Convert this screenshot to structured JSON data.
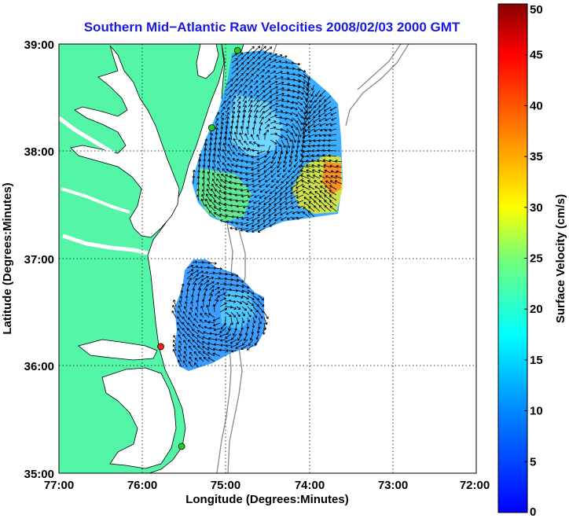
{
  "title": "Southern Mid−Atlantic Raw Velocities 2008/02/03 2000 GMT",
  "chart_data": {
    "type": "map",
    "xlabel": "Longitude (Degrees:Minutes)",
    "ylabel": "Latitude (Degrees:Minutes)",
    "x_ticks": [
      "77:00",
      "76:00",
      "75:00",
      "74:00",
      "73:00",
      "72:00"
    ],
    "y_ticks": [
      "39:00",
      "38:00",
      "37:00",
      "36:00",
      "35:00"
    ],
    "xlim": [
      -77,
      -72
    ],
    "ylim": [
      35,
      39
    ],
    "grid": "dotted",
    "colorbar": {
      "label": "Surface Velocity (cm/s)",
      "range": [
        0,
        50
      ],
      "ticks": [
        "50",
        "45",
        "40",
        "35",
        "30",
        "25",
        "20",
        "15",
        "10",
        "5",
        "0"
      ],
      "colormap": "jet"
    },
    "land_color": "#55f5a8",
    "stations": [
      {
        "lon": -74.86,
        "lat": 38.94,
        "color": "#22cc22"
      },
      {
        "lon": -75.17,
        "lat": 38.22,
        "color": "#22cc22"
      },
      {
        "lon": -75.78,
        "lat": 36.18,
        "color": "#ee2222"
      },
      {
        "lon": -75.53,
        "lat": 35.25,
        "color": "#22cc22"
      }
    ]
  }
}
